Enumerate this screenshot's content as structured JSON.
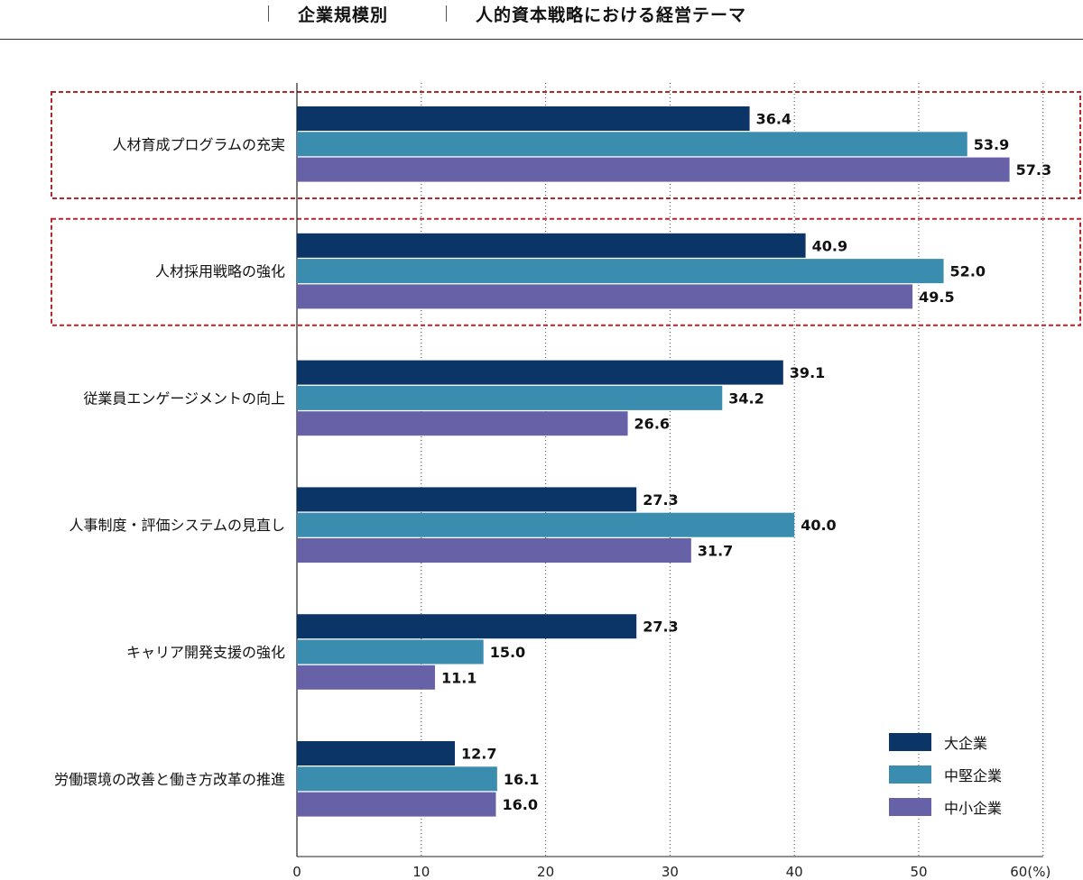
{
  "header": {
    "segment": "企業規模別",
    "title": "人的資本戦略における経営テーマ"
  },
  "colors": {
    "large": "#0b3566",
    "mid": "#3b8db0",
    "small": "#6762a8",
    "highlight_border": "#b3262b",
    "grid": "#444444"
  },
  "chart_data": {
    "type": "bar",
    "orientation": "horizontal",
    "title": "人的資本戦略における経営テーマ",
    "subtitle": "企業規模別",
    "categories": [
      "人材育成プログラムの充実",
      "人材採用戦略の強化",
      "従業員エンゲージメントの向上",
      "人事制度・評価システムの見直し",
      "キャリア開発支援の強化",
      "労働環境の改善と働き方改革の推進"
    ],
    "series": [
      {
        "name": "大企業",
        "color": "#0b3566",
        "values": [
          36.4,
          40.9,
          39.1,
          27.3,
          27.3,
          12.7
        ]
      },
      {
        "name": "中堅企業",
        "color": "#3b8db0",
        "values": [
          53.9,
          52.0,
          34.2,
          40.0,
          15.0,
          16.1
        ]
      },
      {
        "name": "中小企業",
        "color": "#6762a8",
        "values": [
          57.3,
          49.5,
          26.6,
          31.7,
          11.1,
          16.0
        ]
      }
    ],
    "xlim": [
      0,
      60
    ],
    "xticks": [
      "0",
      "10",
      "20",
      "30",
      "40",
      "50",
      "60(%)"
    ],
    "grid": "vertical dotted",
    "legend_position": "bottom-right",
    "highlighted_categories": [
      0,
      1
    ]
  }
}
